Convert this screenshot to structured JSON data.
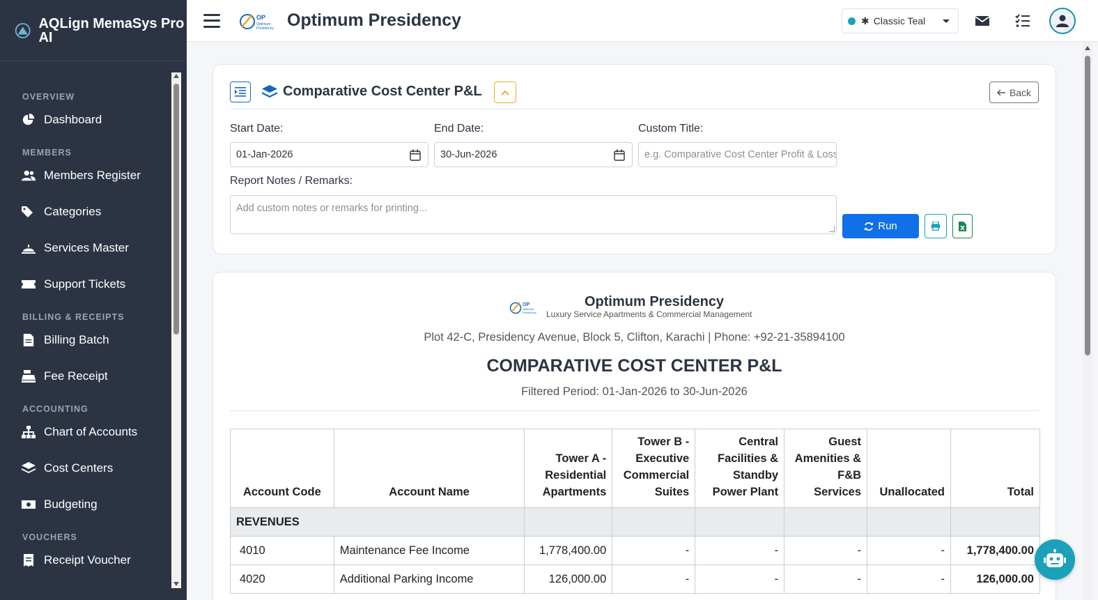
{
  "app": {
    "brand_name": "AQLign MemaSys Pro AI"
  },
  "sidebar": {
    "sections": [
      {
        "label": "OVERVIEW",
        "items": [
          {
            "label": "Dashboard",
            "icon": "pie-chart-icon"
          }
        ]
      },
      {
        "label": "MEMBERS",
        "items": [
          {
            "label": "Members Register",
            "icon": "users-icon"
          },
          {
            "label": "Categories",
            "icon": "tags-icon"
          },
          {
            "label": "Services Master",
            "icon": "bell-concierge-icon"
          },
          {
            "label": "Support Tickets",
            "icon": "ticket-icon"
          }
        ]
      },
      {
        "label": "BILLING & RECEIPTS",
        "items": [
          {
            "label": "Billing Batch",
            "icon": "invoice-icon"
          },
          {
            "label": "Fee Receipt",
            "icon": "cash-register-icon"
          }
        ]
      },
      {
        "label": "ACCOUNTING",
        "items": [
          {
            "label": "Chart of Accounts",
            "icon": "sitemap-icon"
          },
          {
            "label": "Cost Centers",
            "icon": "layer-group-icon"
          },
          {
            "label": "Budgeting",
            "icon": "money-bill-icon"
          }
        ]
      },
      {
        "label": "VOUCHERS",
        "items": [
          {
            "label": "Receipt Voucher",
            "icon": "receipt-icon"
          }
        ]
      }
    ]
  },
  "topbar": {
    "title": "Optimum Presidency",
    "theme_label": "Classic Teal",
    "theme_color": "#17a2b8"
  },
  "filter": {
    "title": "Comparative Cost Center P&L",
    "back_label": "Back",
    "start_date_label": "Start Date:",
    "start_date_value": "01-Jan-2026",
    "end_date_label": "End Date:",
    "end_date_value": "30-Jun-2026",
    "custom_title_label": "Custom Title:",
    "custom_title_placeholder": "e.g. Comparative Cost Center Profit & Loss",
    "notes_label": "Report Notes / Remarks:",
    "notes_placeholder": "Add custom notes or remarks for printing...",
    "run_label": "Run"
  },
  "report": {
    "company": "Optimum Presidency",
    "tagline": "Luxury Service Apartments & Commercial Management",
    "address": "Plot 42-C, Presidency Avenue, Block 5, Clifton, Karachi | Phone: +92-21-35894100",
    "title": "COMPARATIVE COST CENTER P&L",
    "period": "Filtered Period: 01-Jan-2026 to 30-Jun-2026",
    "columns": [
      "Account Code",
      "Account Name",
      "Tower A - Residential Apartments",
      "Tower B - Executive Commercial Suites",
      "Central Facilities & Standby Power Plant",
      "Guest Amenities & F&B Services",
      "Unallocated",
      "Total"
    ],
    "section_revenues": "REVENUES",
    "rows": [
      {
        "code": "4010",
        "name": "Maintenance Fee Income",
        "a": "1,778,400.00",
        "b": "-",
        "c": "-",
        "d": "-",
        "e": "-",
        "total": "1,778,400.00"
      },
      {
        "code": "4020",
        "name": "Additional Parking Income",
        "a": "126,000.00",
        "b": "-",
        "c": "-",
        "d": "-",
        "e": "-",
        "total": "126,000.00"
      }
    ]
  }
}
